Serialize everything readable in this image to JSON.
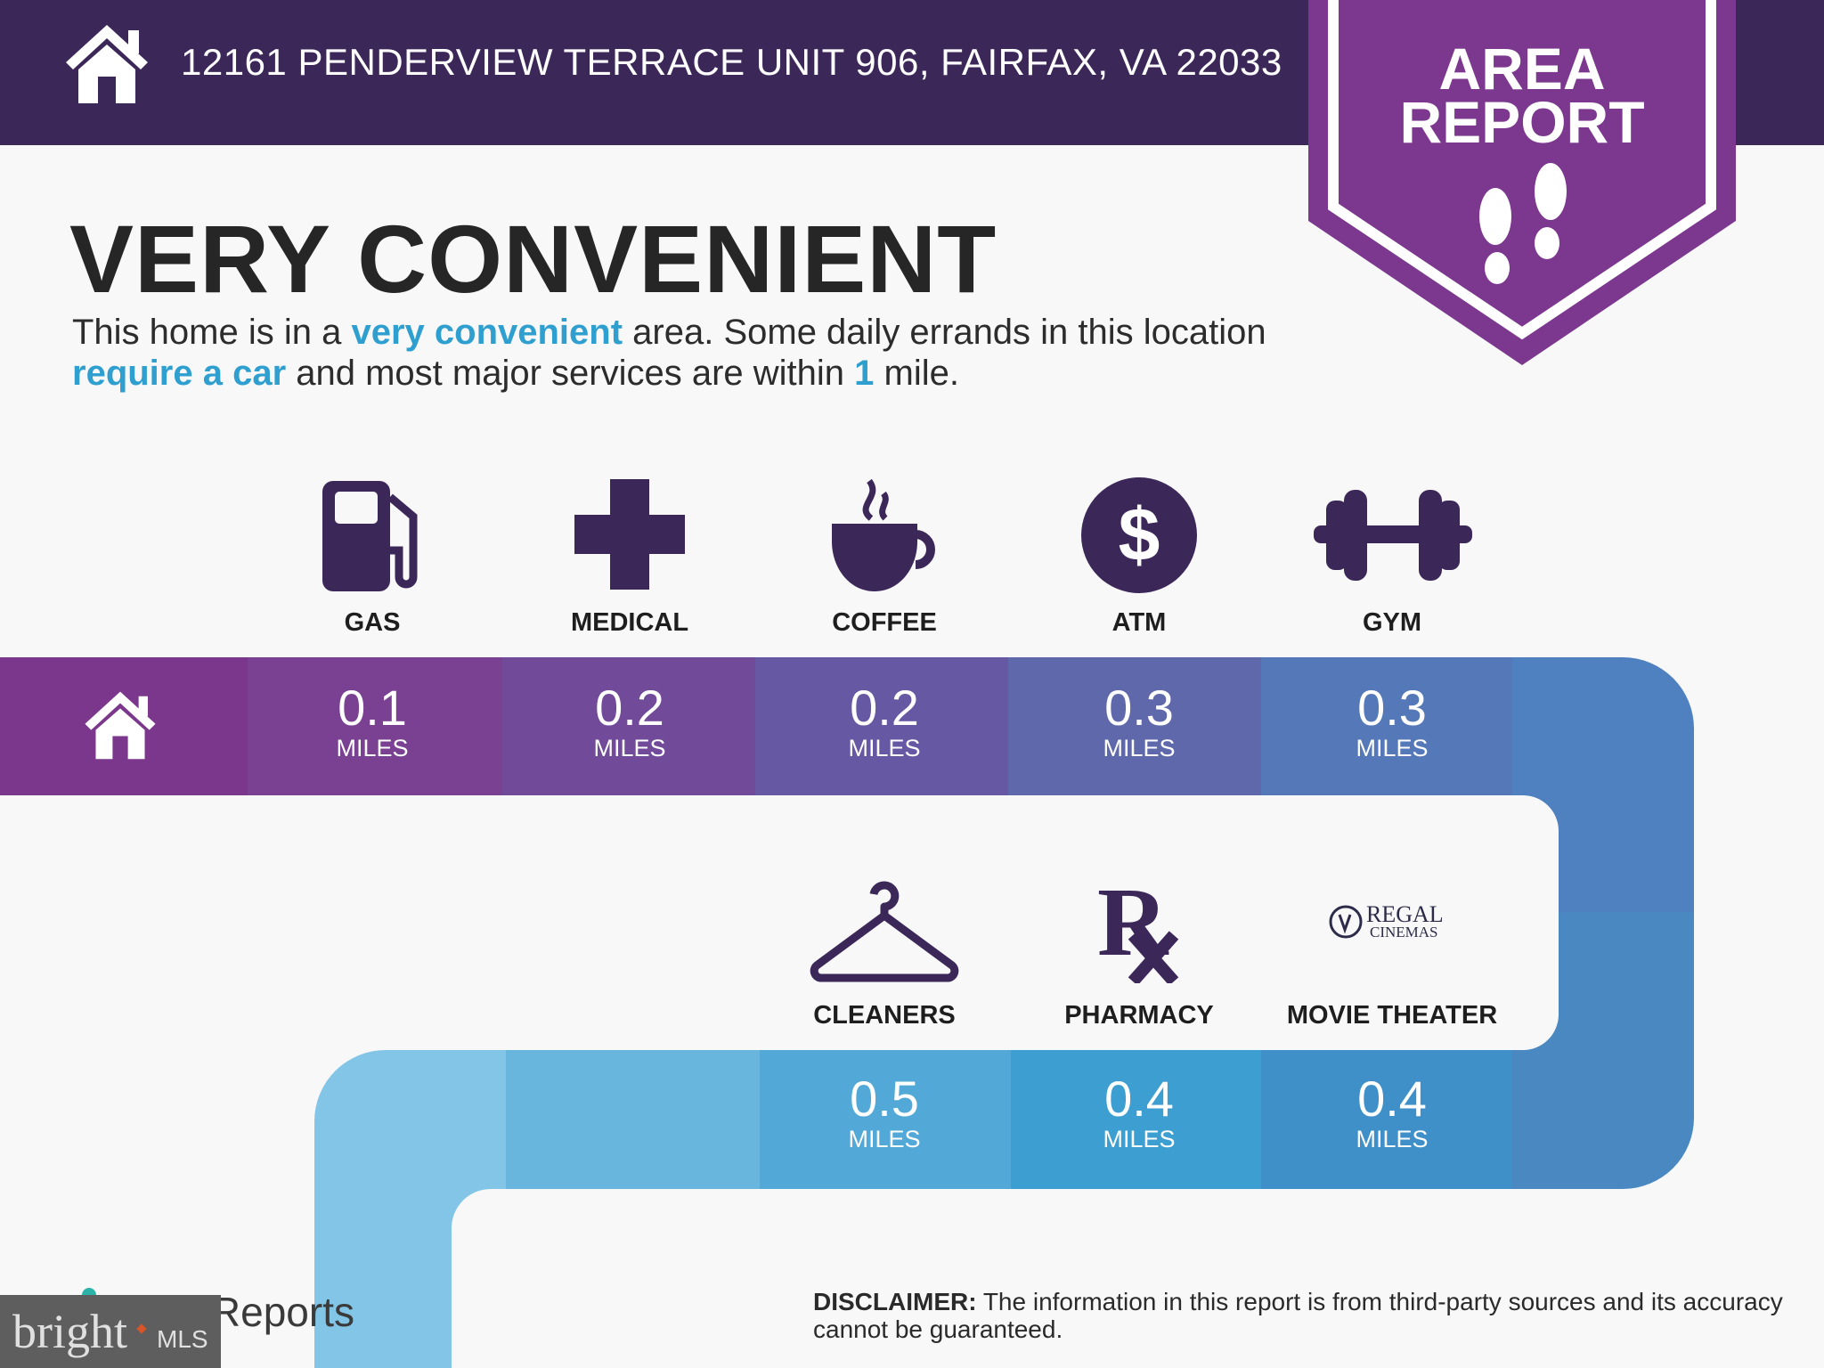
{
  "header": {
    "address": "12161 PENDERVIEW TERRACE UNIT 906, FAIRFAX, VA 22033",
    "home_icon": "house-icon"
  },
  "badge": {
    "line1": "AREA",
    "line2": "REPORT",
    "icon": "footprints-icon",
    "color": "#7b388e"
  },
  "headline": "VERY CONVENIENT",
  "description": {
    "p1": "This home is in a ",
    "h1": "very convenient",
    "p2": " area. Some daily errands in this location ",
    "h2": "require a car",
    "p3": " and most major services are within ",
    "h3": "1",
    "p4": " mile."
  },
  "row1": [
    {
      "label": "GAS",
      "icon": "gas-pump-icon",
      "value": "0.1",
      "unit": "MILES",
      "color": "#7a4092"
    },
    {
      "label": "MEDICAL",
      "icon": "medical-cross-icon",
      "value": "0.2",
      "unit": "MILES",
      "color": "#714a9a"
    },
    {
      "label": "COFFEE",
      "icon": "coffee-cup-icon",
      "value": "0.2",
      "unit": "MILES",
      "color": "#6658a2"
    },
    {
      "label": "ATM",
      "icon": "dollar-icon",
      "value": "0.3",
      "unit": "MILES",
      "color": "#5e68ab"
    },
    {
      "label": "GYM",
      "icon": "dumbbell-icon",
      "value": "0.3",
      "unit": "MILES",
      "color": "#5478b8"
    }
  ],
  "row2": [
    {
      "label": "CLEANERS",
      "icon": "hanger-icon",
      "value": "0.5",
      "unit": "MILES",
      "color": "#52a8d6"
    },
    {
      "label": "PHARMACY",
      "icon": "rx-icon",
      "value": "0.4",
      "unit": "MILES",
      "color": "#3d9ed2"
    },
    {
      "label": "MOVIE THEATER",
      "icon": "regal-cinemas-logo",
      "logo_text1": "REGAL",
      "logo_text2": "CINEMAS",
      "value": "0.4",
      "unit": "MILES",
      "color": "#3f90c9"
    }
  ],
  "disclaimer": {
    "bold": "DISCLAIMER:",
    "text": " The information in this report is from third-party sources and its accuracy cannot be guaranteed."
  },
  "footer_logo": "Reports",
  "watermark": {
    "brand": "bright",
    "suffix": "MLS"
  },
  "colors": {
    "dark_purple": "#3b2758",
    "accent_blue": "#2f9fd0",
    "home_segment": "#7b378c"
  }
}
